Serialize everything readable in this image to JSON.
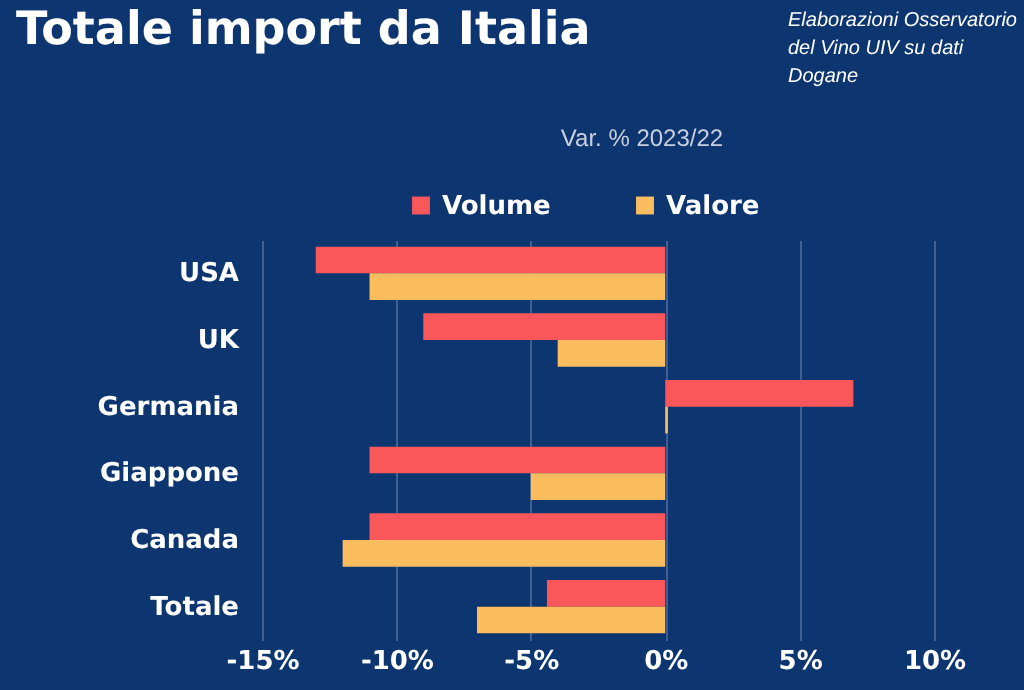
{
  "chart_data": {
    "type": "bar",
    "orientation": "horizontal",
    "title": "Totale import da Italia",
    "subtitle": "Var. % 2023/22",
    "annotations": [
      "Elaborazioni Osservatorio del Vino UIV su dati Dogane"
    ],
    "categories": [
      "USA",
      "UK",
      "Germania",
      "Giappone",
      "Canada",
      "Totale"
    ],
    "series": [
      {
        "name": "Volume",
        "color": "#f9575a",
        "values": [
          -13,
          -9,
          7,
          -11,
          -11,
          -4.4
        ]
      },
      {
        "name": "Valore",
        "color": "#fbbd5e",
        "values": [
          -11,
          -4,
          0.1,
          -5,
          -12,
          -7
        ]
      }
    ],
    "xlim": [
      -15,
      10
    ],
    "xticks": [
      {
        "value": -15,
        "label": "-15%"
      },
      {
        "value": -10,
        "label": "-10%"
      },
      {
        "value": -5,
        "label": "-5%"
      },
      {
        "value": 0,
        "label": "0%"
      },
      {
        "value": 5,
        "label": "5%"
      },
      {
        "value": 10,
        "label": "10%"
      }
    ],
    "grid": "x",
    "legend": "top"
  }
}
